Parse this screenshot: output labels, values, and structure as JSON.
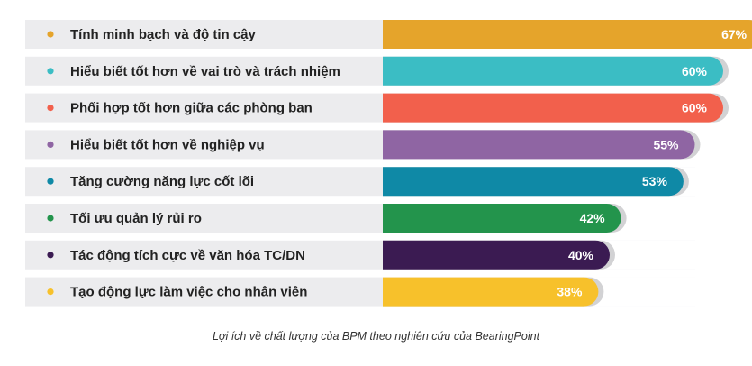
{
  "chart_data": {
    "type": "bar",
    "orientation": "horizontal",
    "categories": [
      "Tính minh bạch và độ tin cậy",
      "Hiểu biết tốt hơn về vai trò và trách nhiệm",
      "Phối hợp tốt hơn giữa các phòng ban",
      "Hiểu biết tốt hơn về nghiệp vụ",
      "Tăng cường năng lực cốt lõi",
      "Tối ưu quản lý rủi ro",
      "Tác động tích cực về văn hóa TC/DN",
      "Tạo động lực làm việc cho nhân viên"
    ],
    "values": [
      67,
      60,
      60,
      55,
      53,
      42,
      40,
      38
    ],
    "value_labels": [
      "67%",
      "60%",
      "60%",
      "55%",
      "53%",
      "42%",
      "40%",
      "38%"
    ],
    "colors": [
      "#e5a42b",
      "#3bbdc4",
      "#f2604c",
      "#8f65a3",
      "#0f89a6",
      "#23944c",
      "#3b1b52",
      "#f7c12b"
    ],
    "xlim": [
      0,
      100
    ],
    "grid": false,
    "legend": "none"
  },
  "caption": "Lợi ích về chất lượng của BPM theo nghiên cứu của BearingPoint"
}
